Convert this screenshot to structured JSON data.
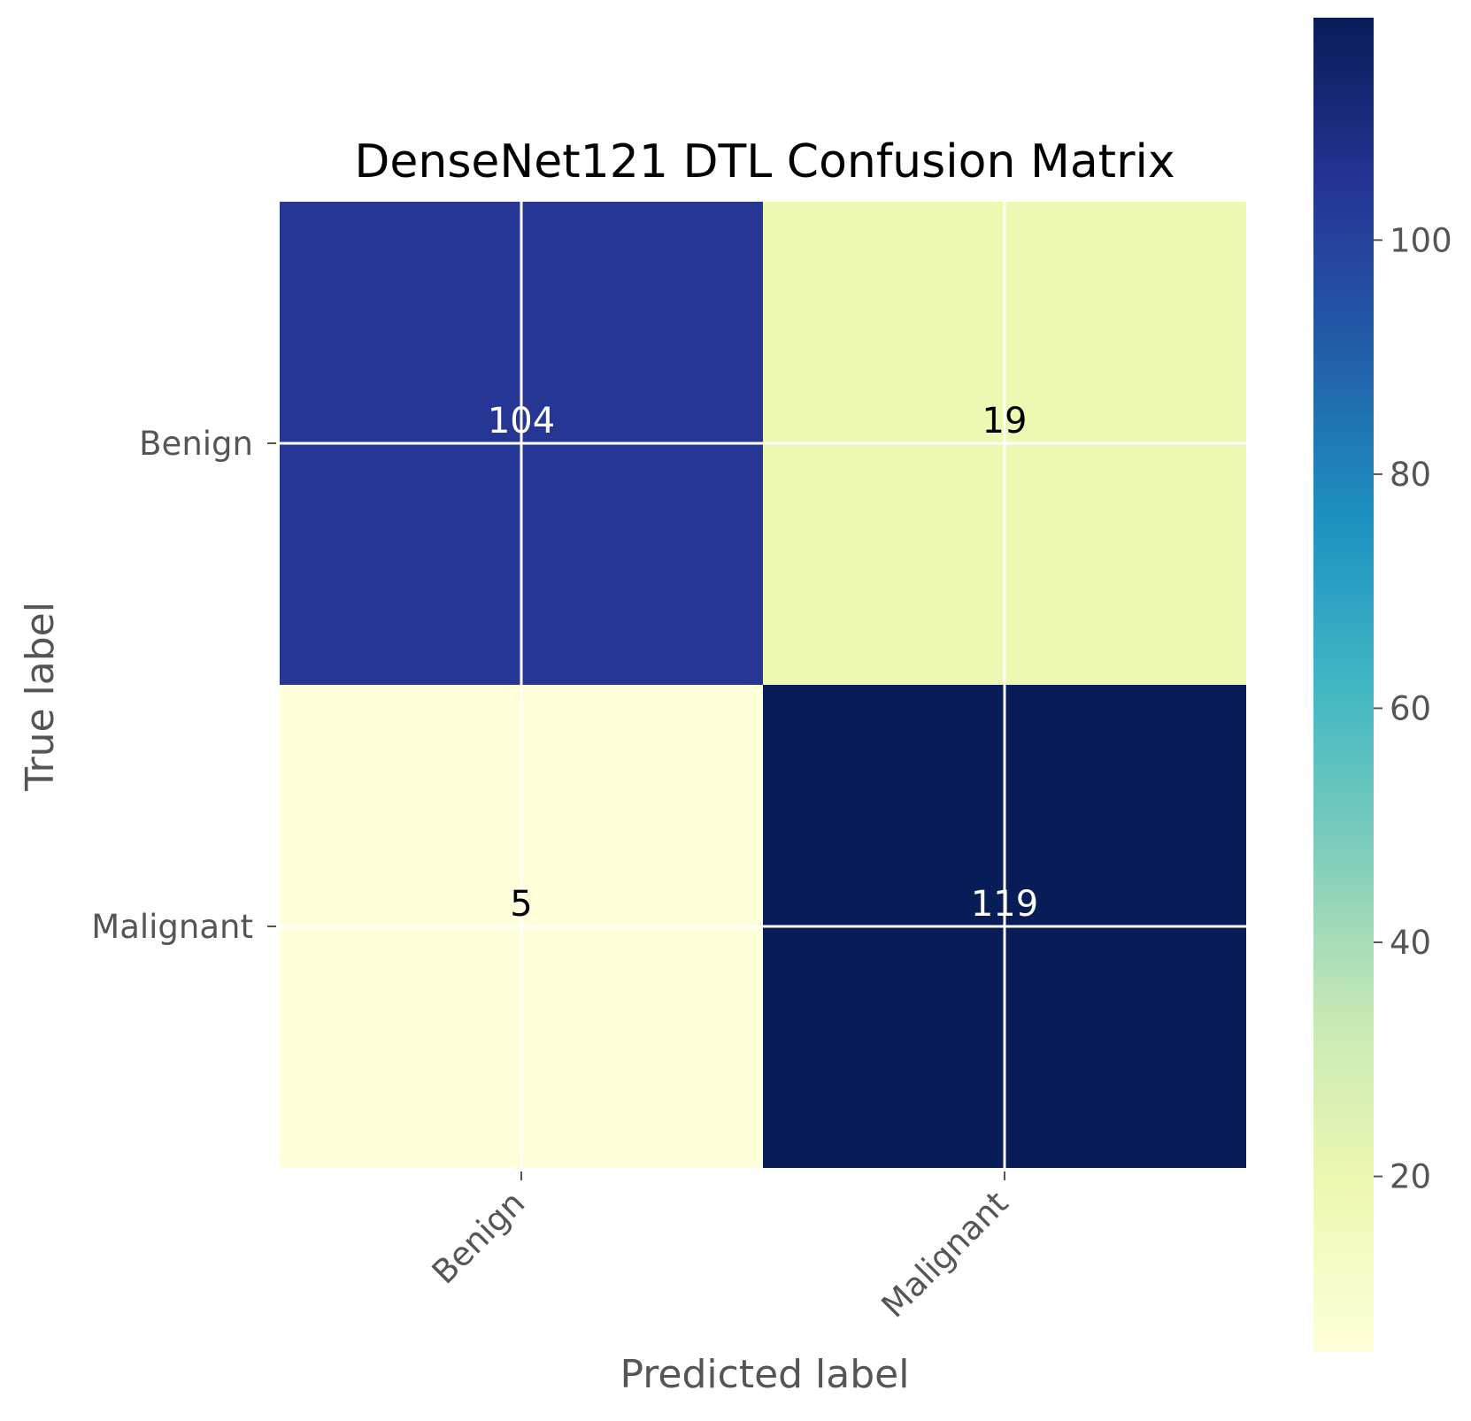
{
  "chart_data": {
    "type": "heatmap",
    "title": "DenseNet121 DTL Confusion Matrix",
    "xlabel": "Predicted label",
    "ylabel": "True label",
    "x_categories": [
      "Benign",
      "Malignant"
    ],
    "y_categories": [
      "Benign",
      "Malignant"
    ],
    "values": [
      [
        104,
        19
      ],
      [
        5,
        119
      ]
    ],
    "value_labels": [
      "104",
      "19",
      "5",
      "119"
    ],
    "colormap": "YlGnBu",
    "color_range": [
      5,
      119
    ],
    "colorbar_ticks": [
      20,
      40,
      60,
      80,
      100
    ],
    "colorbar_tick_labels": [
      "20",
      "40",
      "60",
      "80",
      "100"
    ],
    "grid": true,
    "grid_color": "#ffffff",
    "text_colors": {
      "dark_cell": "#ffffff",
      "light_cell": "#000000"
    }
  }
}
